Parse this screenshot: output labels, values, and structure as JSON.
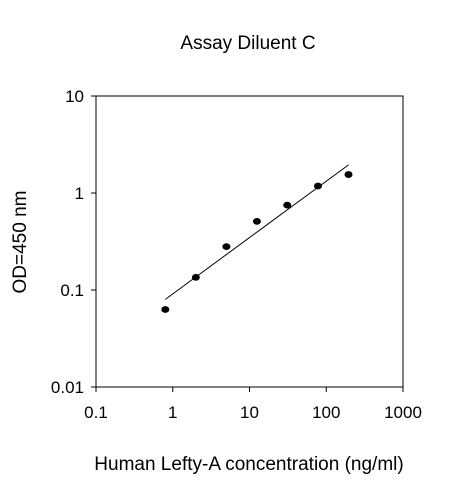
{
  "chart_data": {
    "type": "scatter",
    "title": "Assay Diluent C",
    "xlabel": "Human Lefty-A concentration (ng/ml)",
    "ylabel": "OD=450 nm",
    "xscale": "log",
    "yscale": "log",
    "xlim": [
      0.1,
      1000
    ],
    "ylim": [
      0.01,
      10
    ],
    "x_ticks": [
      "0.1",
      "1",
      "10",
      "100",
      "1000"
    ],
    "y_ticks": [
      "0.01",
      "0.1",
      "1",
      "10"
    ],
    "grid": false,
    "legend": "none",
    "points": [
      {
        "x": 0.8,
        "y": 0.063
      },
      {
        "x": 2.0,
        "y": 0.135
      },
      {
        "x": 5.0,
        "y": 0.28
      },
      {
        "x": 12.5,
        "y": 0.51
      },
      {
        "x": 31.0,
        "y": 0.75
      },
      {
        "x": 78.0,
        "y": 1.18
      },
      {
        "x": 195.0,
        "y": 1.55
      }
    ],
    "fit_line": {
      "x": [
        0.8,
        195.0
      ],
      "y": [
        0.08,
        1.95
      ]
    }
  }
}
